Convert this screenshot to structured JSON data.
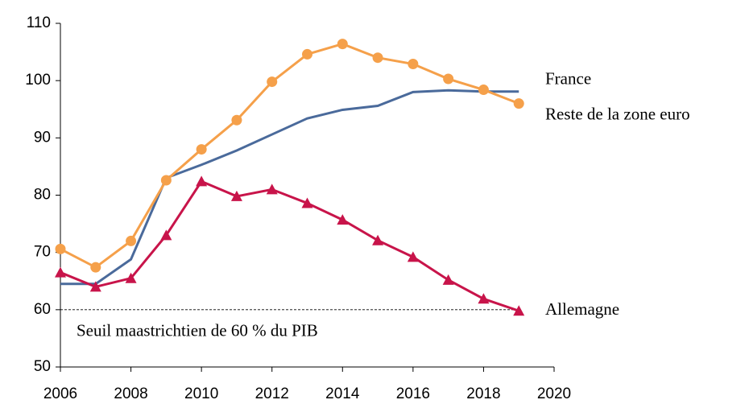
{
  "chart_data": {
    "type": "line",
    "x": [
      2006,
      2007,
      2008,
      2009,
      2010,
      2011,
      2012,
      2013,
      2014,
      2015,
      2016,
      2017,
      2018,
      2019
    ],
    "series": [
      {
        "name": "France",
        "color": "#4a6a9b",
        "marker": "none",
        "values": [
          64.5,
          64.5,
          68.8,
          83,
          85.3,
          87.8,
          90.6,
          93.4,
          94.9,
          95.6,
          98.0,
          98.3,
          98.1,
          98.1
        ]
      },
      {
        "name": "Reste de la zone euro",
        "color": "#f5a04a",
        "marker": "circle",
        "values": [
          70.6,
          67.4,
          72,
          82.6,
          88,
          93.1,
          99.8,
          104.6,
          106.4,
          104,
          102.9,
          100.3,
          98.4,
          96
        ]
      },
      {
        "name": "Allemagne",
        "color": "#c8144a",
        "marker": "triangle",
        "values": [
          66.5,
          64,
          65.5,
          73,
          82.4,
          79.8,
          81,
          78.6,
          75.7,
          72.1,
          69.2,
          65.2,
          61.9,
          59.8
        ]
      }
    ],
    "threshold": {
      "value": 60,
      "label": "Seuil maastrichtien de 60 % du PIB"
    },
    "xlim": [
      2006,
      2020
    ],
    "xticks": [
      2006,
      2008,
      2010,
      2012,
      2014,
      2016,
      2018,
      2020
    ],
    "ylim": [
      50,
      110
    ],
    "yticks": [
      50,
      60,
      70,
      80,
      90,
      100,
      110
    ]
  }
}
